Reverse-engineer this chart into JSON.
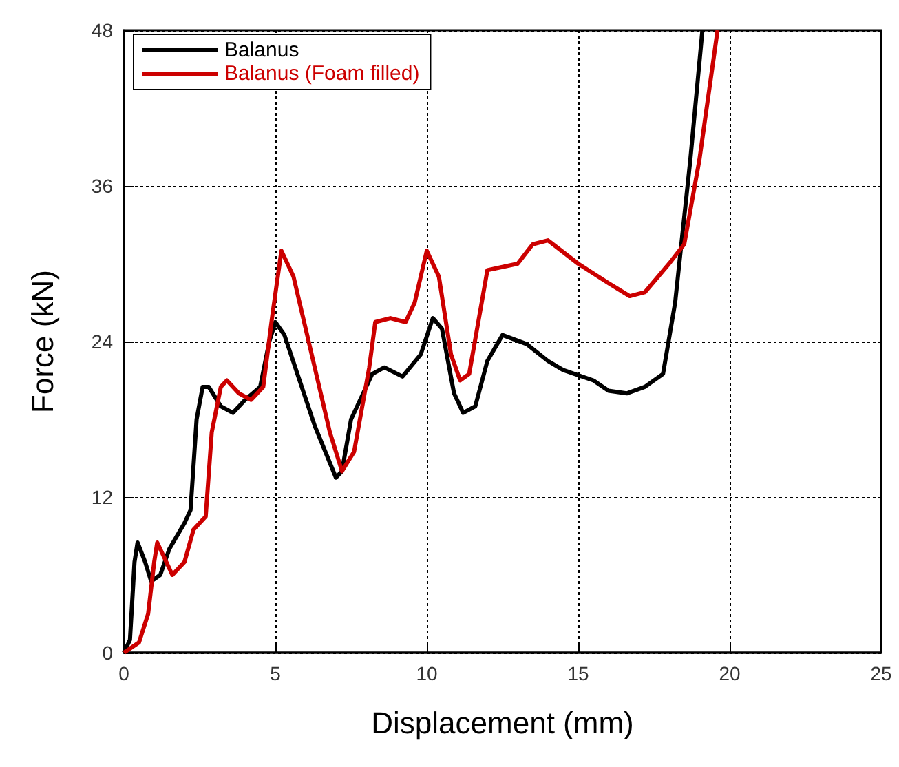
{
  "chart_data": {
    "type": "line",
    "xlabel": "Displacement (mm)",
    "ylabel": "Force (kN)",
    "xlim": [
      0,
      25
    ],
    "xticks": [
      0,
      5,
      10,
      15,
      20,
      25
    ],
    "ylim": [
      0,
      48
    ],
    "yticks": [
      0,
      12,
      24,
      36,
      48
    ],
    "grid": true,
    "legend": "top left",
    "marker": "none",
    "line_style": "solid",
    "series": [
      {
        "name": "Balanus",
        "color": "#000000",
        "x": [
          0,
          0.2,
          0.35,
          0.45,
          0.7,
          0.9,
          1.2,
          1.5,
          2,
          2.2,
          2.4,
          2.6,
          2.8,
          3.2,
          3.6,
          4,
          4.5,
          4.8,
          5,
          5.3,
          5.8,
          6.3,
          7,
          7.2,
          7.5,
          7.8,
          8.2,
          8.6,
          9.2,
          9.8,
          10.2,
          10.5,
          10.9,
          11.2,
          11.6,
          12,
          12.5,
          13.3,
          14,
          14.5,
          15.5,
          16,
          16.6,
          17.2,
          17.8,
          18.2,
          18.7,
          19.1
        ],
        "values": [
          0,
          1,
          7,
          8.5,
          7,
          5.5,
          6,
          8,
          10,
          11,
          18,
          20.5,
          20.5,
          19,
          18.5,
          19.5,
          20.5,
          24,
          25.5,
          24.5,
          21,
          17.5,
          13.5,
          14,
          18,
          19.5,
          21.5,
          22,
          21.3,
          23,
          25.8,
          25,
          20,
          18.5,
          19,
          22.5,
          24.5,
          23.8,
          22.5,
          21.8,
          21,
          20.2,
          20,
          20.5,
          21.5,
          27,
          38,
          48
        ]
      },
      {
        "name": "Balanus (Foam filled)",
        "color": "#cc0000",
        "x": [
          0,
          0.5,
          0.8,
          1,
          1.1,
          1.3,
          1.6,
          2,
          2.3,
          2.7,
          2.9,
          3.2,
          3.4,
          3.8,
          4.2,
          4.6,
          4.9,
          5.2,
          5.6,
          6.2,
          6.8,
          7.2,
          7.6,
          8.1,
          8.3,
          8.8,
          9.3,
          9.6,
          10,
          10.4,
          10.8,
          11.1,
          11.4,
          12,
          12.6,
          13,
          13.5,
          14,
          15,
          16,
          16.7,
          17.2,
          18,
          18.5,
          19,
          19.6
        ],
        "values": [
          0,
          0.8,
          3,
          7,
          8.5,
          7.5,
          6,
          7,
          9.5,
          10.5,
          17,
          20.5,
          21,
          20,
          19.5,
          20.5,
          26,
          31,
          29,
          23,
          17,
          14,
          15.5,
          22,
          25.5,
          25.8,
          25.5,
          27,
          31,
          29,
          23,
          21,
          21.5,
          29.5,
          29.8,
          30,
          31.5,
          31.8,
          30,
          28.5,
          27.5,
          27.8,
          30,
          31.5,
          38,
          48
        ]
      }
    ]
  }
}
